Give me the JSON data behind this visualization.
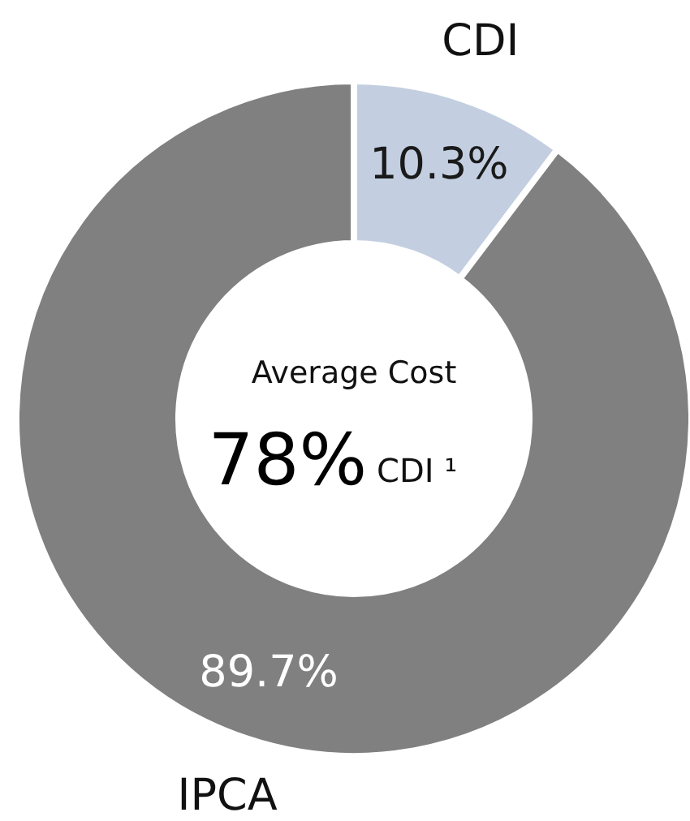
{
  "chart_data": {
    "type": "donut",
    "categories": [
      "CDI",
      "IPCA"
    ],
    "values": [
      10.3,
      89.7
    ],
    "colors": [
      "#c3cfe1",
      "#808080"
    ],
    "value_labels": [
      "10.3%",
      "89.7%"
    ],
    "annotations": [
      "Average Cost",
      "78%",
      "CDI ¹"
    ]
  }
}
